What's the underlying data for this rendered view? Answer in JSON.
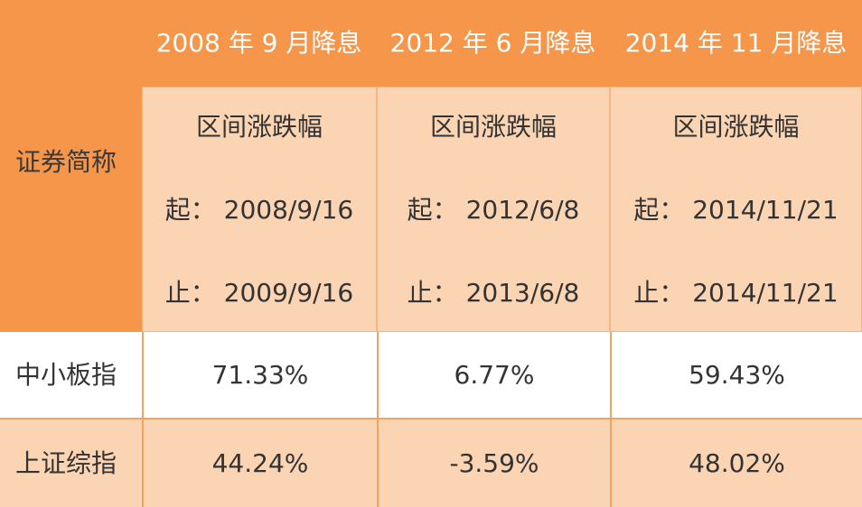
{
  "corner_label": "证券简称",
  "periods": [
    {
      "title": "2008 年 9 月降息",
      "range_label": "区间涨跌幅",
      "start": "起：  2008/9/16",
      "end": "止：  2009/9/16"
    },
    {
      "title": "2012 年 6 月降息",
      "range_label": "区间涨跌幅",
      "start": "起：  2012/6/8",
      "end": "止：  2013/6/8"
    },
    {
      "title": "2014 年 11 月降息",
      "range_label": "区间涨跌幅",
      "start": "起：  2014/11/21",
      "end": "止：  2014/11/21"
    }
  ],
  "rows": [
    {
      "name": "中小板指",
      "values": [
        "71.33%",
        "6.77%",
        "59.43%"
      ]
    },
    {
      "name": "上证综指",
      "values": [
        "44.24%",
        "-3.59%",
        "48.02%"
      ]
    }
  ],
  "colors": {
    "header": "#f6964b",
    "peach": "#fbd4b4",
    "border": "#f7a15d",
    "white": "#ffffff"
  }
}
